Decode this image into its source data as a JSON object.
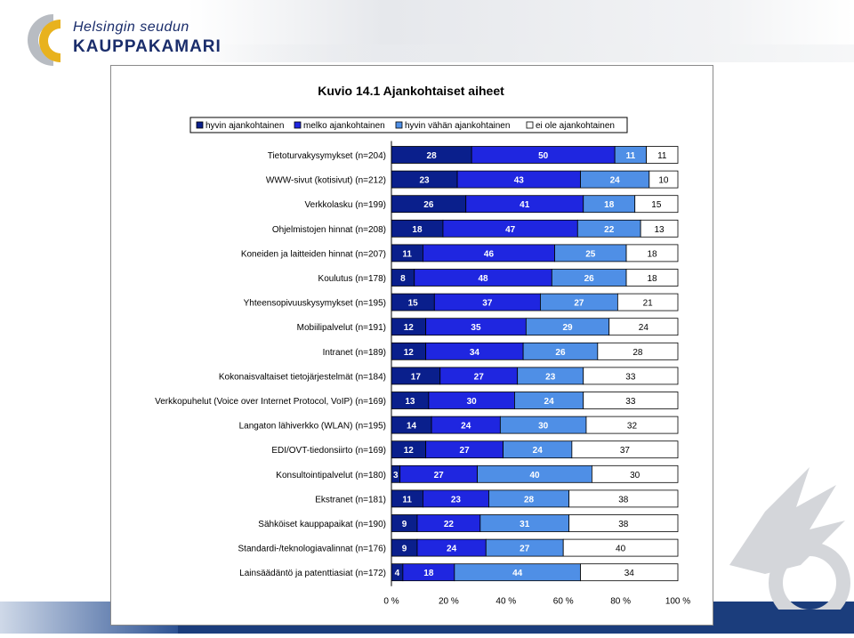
{
  "brand": {
    "line1": "Helsingin seudun",
    "line2": "KAUPPAKAMARI",
    "accent_orange": "#e8b21e",
    "accent_gray": "#b8bcc2",
    "navy": "#1a2d6b"
  },
  "chart_data": {
    "type": "bar",
    "orientation": "horizontal",
    "stacked": true,
    "percent_stacked": true,
    "title": "Kuvio 14.1 Ajankohtaiset aiheet",
    "xlabel": "",
    "ylabel": "",
    "xlim": [
      0,
      100
    ],
    "x_ticks": [
      "0 %",
      "20 %",
      "40 %",
      "60 %",
      "80 %",
      "100 %"
    ],
    "legend_position": "top",
    "grid": false,
    "categories": [
      "Tietoturvakysymykset (n=204)",
      "WWW-sivut (kotisivut) (n=212)",
      "Verkkolasku (n=199)",
      "Ohjelmistojen hinnat (n=208)",
      "Koneiden ja laitteiden hinnat (n=207)",
      "Koulutus (n=178)",
      "Yhteensopivuuskysymykset (n=195)",
      "Mobiilipalvelut (n=191)",
      "Intranet (n=189)",
      "Kokonaisvaltaiset tietojärjestelmät (n=184)",
      "Verkkopuhelut (Voice over Internet Protocol, VoIP) (n=169)",
      "Langaton lähiverkko (WLAN) (n=195)",
      "EDI/OVT-tiedonsiirto (n=169)",
      "Konsultointipalvelut (n=180)",
      "Ekstranet (n=181)",
      "Sähköiset kauppapaikat (n=190)",
      "Standardi-/teknologiavalinnat (n=176)",
      "Lainsäädäntö ja patenttiasiat (n=172)"
    ],
    "series": [
      {
        "name": "hyvin ajankohtainen",
        "color": "#0a1f8c",
        "values": [
          28,
          23,
          26,
          18,
          11,
          8,
          15,
          12,
          12,
          17,
          13,
          14,
          12,
          3,
          11,
          9,
          9,
          4
        ]
      },
      {
        "name": "melko ajankohtainen",
        "color": "#1f26e0",
        "values": [
          50,
          43,
          41,
          47,
          46,
          48,
          37,
          35,
          34,
          27,
          30,
          24,
          27,
          27,
          23,
          22,
          24,
          18
        ]
      },
      {
        "name": "hyvin vähän ajankohtainen",
        "color": "#4f8fe6",
        "values": [
          11,
          24,
          18,
          22,
          25,
          26,
          27,
          29,
          26,
          23,
          24,
          30,
          24,
          40,
          28,
          31,
          27,
          44
        ]
      },
      {
        "name": "ei ole ajankohtainen",
        "color": "#ffffff",
        "values": [
          11,
          10,
          15,
          13,
          18,
          18,
          21,
          24,
          28,
          33,
          33,
          32,
          37,
          30,
          38,
          38,
          40,
          34
        ]
      }
    ]
  }
}
